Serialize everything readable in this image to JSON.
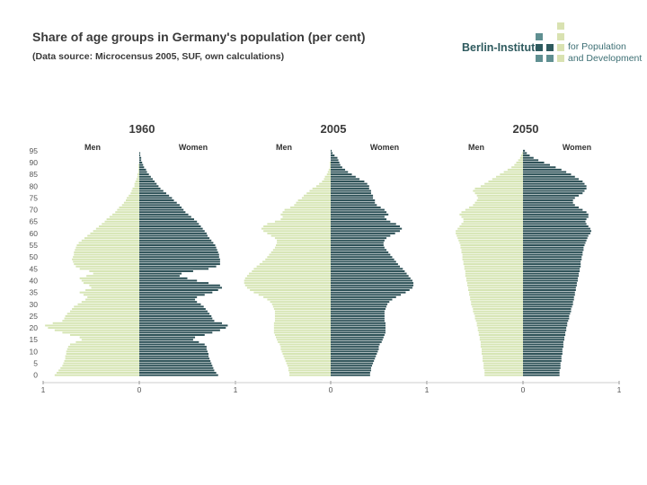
{
  "header": {
    "title": "Share of age groups in Germany's population (per cent)",
    "subtitle": "(Data source: Microcensus 2005, SUF, own calculations)"
  },
  "logo": {
    "name": "Berlin-Institute",
    "line1": "for Population",
    "line2": "and Development",
    "colors": {
      "dark": "#2e5a5e",
      "mid": "#5f8f91",
      "light": "#d9e2b1"
    }
  },
  "colors": {
    "men": "#d6e5b4",
    "women": "#2d5157"
  },
  "chart_data": [
    {
      "type": "population-pyramid",
      "title": "1960",
      "left_label": "Men",
      "right_label": "Women",
      "x_range": [
        -1,
        1
      ],
      "x_ticks": [
        "1",
        "0",
        "1"
      ],
      "age_ticks": [
        "0",
        "5",
        "10",
        "15",
        "20",
        "25",
        "30",
        "35",
        "40",
        "45",
        "50",
        "55",
        "60",
        "65",
        "70",
        "75",
        "80",
        "85",
        "90",
        "95"
      ],
      "ages": [
        0,
        1,
        2,
        3,
        4,
        5,
        6,
        7,
        8,
        9,
        10,
        11,
        12,
        13,
        14,
        15,
        16,
        17,
        18,
        19,
        20,
        21,
        22,
        23,
        24,
        25,
        26,
        27,
        28,
        29,
        30,
        31,
        32,
        33,
        34,
        35,
        36,
        37,
        38,
        39,
        40,
        41,
        42,
        43,
        44,
        45,
        46,
        47,
        48,
        49,
        50,
        51,
        52,
        53,
        54,
        55,
        56,
        57,
        58,
        59,
        60,
        61,
        62,
        63,
        64,
        65,
        66,
        67,
        68,
        69,
        70,
        71,
        72,
        73,
        74,
        75,
        76,
        77,
        78,
        79,
        80,
        81,
        82,
        83,
        84,
        85,
        86,
        87,
        88,
        89,
        90,
        91,
        92,
        93,
        94,
        95
      ],
      "series": [
        {
          "name": "Men",
          "values": [
            0.88,
            0.86,
            0.84,
            0.82,
            0.8,
            0.79,
            0.78,
            0.77,
            0.77,
            0.76,
            0.76,
            0.75,
            0.74,
            0.72,
            0.66,
            0.6,
            0.62,
            0.72,
            0.8,
            0.88,
            0.95,
            0.98,
            0.9,
            0.8,
            0.78,
            0.77,
            0.75,
            0.72,
            0.7,
            0.68,
            0.64,
            0.6,
            0.56,
            0.54,
            0.58,
            0.62,
            0.56,
            0.5,
            0.52,
            0.58,
            0.6,
            0.62,
            0.55,
            0.48,
            0.52,
            0.62,
            0.66,
            0.68,
            0.69,
            0.7,
            0.69,
            0.68,
            0.68,
            0.67,
            0.66,
            0.65,
            0.63,
            0.6,
            0.57,
            0.54,
            0.51,
            0.48,
            0.45,
            0.42,
            0.39,
            0.36,
            0.34,
            0.31,
            0.28,
            0.25,
            0.23,
            0.21,
            0.18,
            0.16,
            0.14,
            0.13,
            0.11,
            0.09,
            0.08,
            0.07,
            0.05,
            0.05,
            0.04,
            0.03,
            0.02,
            0.02,
            0.01,
            0.01,
            0.01,
            0.01,
            0.0,
            0.0,
            0.0,
            0.0,
            0.0,
            0.0
          ]
        },
        {
          "name": "Women",
          "values": [
            0.82,
            0.8,
            0.78,
            0.77,
            0.76,
            0.75,
            0.74,
            0.73,
            0.72,
            0.72,
            0.71,
            0.7,
            0.7,
            0.68,
            0.62,
            0.56,
            0.58,
            0.68,
            0.76,
            0.84,
            0.9,
            0.92,
            0.86,
            0.78,
            0.76,
            0.75,
            0.73,
            0.71,
            0.69,
            0.67,
            0.64,
            0.6,
            0.58,
            0.6,
            0.68,
            0.76,
            0.82,
            0.86,
            0.84,
            0.72,
            0.6,
            0.5,
            0.42,
            0.44,
            0.56,
            0.72,
            0.8,
            0.84,
            0.84,
            0.84,
            0.83,
            0.83,
            0.82,
            0.81,
            0.8,
            0.79,
            0.77,
            0.75,
            0.73,
            0.71,
            0.7,
            0.68,
            0.66,
            0.64,
            0.62,
            0.6,
            0.57,
            0.54,
            0.51,
            0.48,
            0.46,
            0.44,
            0.42,
            0.39,
            0.36,
            0.34,
            0.31,
            0.28,
            0.25,
            0.22,
            0.2,
            0.18,
            0.16,
            0.14,
            0.12,
            0.1,
            0.08,
            0.07,
            0.05,
            0.04,
            0.03,
            0.02,
            0.02,
            0.01,
            0.01,
            0.0
          ]
        }
      ]
    },
    {
      "type": "population-pyramid",
      "title": "2005",
      "left_label": "Men",
      "right_label": "Women",
      "x_range": [
        -1,
        1
      ],
      "x_ticks": [
        "0",
        "1"
      ],
      "age_ticks": [],
      "ages": [
        0,
        1,
        2,
        3,
        4,
        5,
        6,
        7,
        8,
        9,
        10,
        11,
        12,
        13,
        14,
        15,
        16,
        17,
        18,
        19,
        20,
        21,
        22,
        23,
        24,
        25,
        26,
        27,
        28,
        29,
        30,
        31,
        32,
        33,
        34,
        35,
        36,
        37,
        38,
        39,
        40,
        41,
        42,
        43,
        44,
        45,
        46,
        47,
        48,
        49,
        50,
        51,
        52,
        53,
        54,
        55,
        56,
        57,
        58,
        59,
        60,
        61,
        62,
        63,
        64,
        65,
        66,
        67,
        68,
        69,
        70,
        71,
        72,
        73,
        74,
        75,
        76,
        77,
        78,
        79,
        80,
        81,
        82,
        83,
        84,
        85,
        86,
        87,
        88,
        89,
        90,
        91,
        92,
        93,
        94,
        95
      ],
      "series": [
        {
          "name": "Men",
          "values": [
            0.43,
            0.43,
            0.44,
            0.44,
            0.45,
            0.46,
            0.47,
            0.48,
            0.49,
            0.5,
            0.51,
            0.52,
            0.52,
            0.53,
            0.55,
            0.56,
            0.57,
            0.58,
            0.59,
            0.59,
            0.59,
            0.59,
            0.59,
            0.58,
            0.58,
            0.58,
            0.58,
            0.58,
            0.59,
            0.6,
            0.61,
            0.63,
            0.66,
            0.7,
            0.75,
            0.8,
            0.84,
            0.87,
            0.89,
            0.9,
            0.9,
            0.89,
            0.87,
            0.85,
            0.82,
            0.8,
            0.77,
            0.74,
            0.71,
            0.68,
            0.66,
            0.64,
            0.62,
            0.6,
            0.58,
            0.57,
            0.56,
            0.56,
            0.58,
            0.62,
            0.66,
            0.7,
            0.72,
            0.7,
            0.66,
            0.58,
            0.52,
            0.5,
            0.52,
            0.5,
            0.48,
            0.42,
            0.38,
            0.36,
            0.34,
            0.3,
            0.28,
            0.25,
            0.22,
            0.19,
            0.15,
            0.12,
            0.09,
            0.07,
            0.06,
            0.04,
            0.03,
            0.02,
            0.01,
            0.01,
            0.01,
            0.0,
            0.0,
            0.0,
            0.0,
            0.0
          ]
        },
        {
          "name": "Women",
          "values": [
            0.41,
            0.41,
            0.42,
            0.42,
            0.43,
            0.44,
            0.45,
            0.46,
            0.47,
            0.48,
            0.49,
            0.5,
            0.5,
            0.51,
            0.53,
            0.54,
            0.55,
            0.56,
            0.57,
            0.57,
            0.57,
            0.57,
            0.57,
            0.56,
            0.56,
            0.56,
            0.56,
            0.56,
            0.57,
            0.58,
            0.59,
            0.61,
            0.64,
            0.68,
            0.73,
            0.78,
            0.82,
            0.85,
            0.86,
            0.86,
            0.85,
            0.83,
            0.81,
            0.79,
            0.77,
            0.75,
            0.72,
            0.7,
            0.68,
            0.66,
            0.64,
            0.62,
            0.6,
            0.58,
            0.56,
            0.55,
            0.55,
            0.56,
            0.58,
            0.62,
            0.67,
            0.72,
            0.74,
            0.72,
            0.68,
            0.62,
            0.58,
            0.56,
            0.6,
            0.58,
            0.56,
            0.52,
            0.48,
            0.46,
            0.46,
            0.44,
            0.44,
            0.42,
            0.42,
            0.4,
            0.4,
            0.38,
            0.35,
            0.3,
            0.26,
            0.22,
            0.18,
            0.15,
            0.12,
            0.1,
            0.09,
            0.08,
            0.07,
            0.04,
            0.02,
            0.01
          ]
        }
      ]
    },
    {
      "type": "population-pyramid",
      "title": "2050",
      "left_label": "Men",
      "right_label": "Women",
      "x_range": [
        -1,
        1
      ],
      "x_ticks": [
        "0",
        "1"
      ],
      "age_ticks": [],
      "ages": [
        0,
        1,
        2,
        3,
        4,
        5,
        6,
        7,
        8,
        9,
        10,
        11,
        12,
        13,
        14,
        15,
        16,
        17,
        18,
        19,
        20,
        21,
        22,
        23,
        24,
        25,
        26,
        27,
        28,
        29,
        30,
        31,
        32,
        33,
        34,
        35,
        36,
        37,
        38,
        39,
        40,
        41,
        42,
        43,
        44,
        45,
        46,
        47,
        48,
        49,
        50,
        51,
        52,
        53,
        54,
        55,
        56,
        57,
        58,
        59,
        60,
        61,
        62,
        63,
        64,
        65,
        66,
        67,
        68,
        69,
        70,
        71,
        72,
        73,
        74,
        75,
        76,
        77,
        78,
        79,
        80,
        81,
        82,
        83,
        84,
        85,
        86,
        87,
        88,
        89,
        90,
        91,
        92,
        93,
        94,
        95
      ],
      "series": [
        {
          "name": "Men",
          "values": [
            0.4,
            0.4,
            0.4,
            0.41,
            0.41,
            0.41,
            0.42,
            0.42,
            0.42,
            0.43,
            0.43,
            0.43,
            0.44,
            0.44,
            0.44,
            0.45,
            0.45,
            0.46,
            0.46,
            0.47,
            0.47,
            0.48,
            0.48,
            0.49,
            0.5,
            0.5,
            0.51,
            0.52,
            0.52,
            0.53,
            0.54,
            0.54,
            0.55,
            0.55,
            0.56,
            0.56,
            0.57,
            0.57,
            0.58,
            0.58,
            0.59,
            0.59,
            0.6,
            0.6,
            0.6,
            0.61,
            0.61,
            0.62,
            0.62,
            0.63,
            0.63,
            0.63,
            0.64,
            0.64,
            0.65,
            0.65,
            0.66,
            0.67,
            0.68,
            0.69,
            0.7,
            0.7,
            0.68,
            0.66,
            0.64,
            0.62,
            0.62,
            0.64,
            0.66,
            0.64,
            0.6,
            0.56,
            0.52,
            0.5,
            0.48,
            0.47,
            0.48,
            0.5,
            0.52,
            0.5,
            0.44,
            0.4,
            0.36,
            0.32,
            0.28,
            0.24,
            0.2,
            0.16,
            0.12,
            0.09,
            0.07,
            0.05,
            0.03,
            0.02,
            0.01,
            0.0
          ]
        },
        {
          "name": "Women",
          "values": [
            0.38,
            0.38,
            0.38,
            0.39,
            0.39,
            0.39,
            0.4,
            0.4,
            0.4,
            0.41,
            0.41,
            0.41,
            0.42,
            0.42,
            0.42,
            0.43,
            0.43,
            0.44,
            0.44,
            0.45,
            0.45,
            0.46,
            0.46,
            0.47,
            0.48,
            0.48,
            0.49,
            0.5,
            0.5,
            0.51,
            0.52,
            0.52,
            0.53,
            0.53,
            0.54,
            0.54,
            0.55,
            0.55,
            0.56,
            0.56,
            0.57,
            0.57,
            0.58,
            0.58,
            0.59,
            0.59,
            0.6,
            0.6,
            0.6,
            0.61,
            0.61,
            0.62,
            0.62,
            0.63,
            0.63,
            0.64,
            0.65,
            0.66,
            0.67,
            0.68,
            0.7,
            0.71,
            0.7,
            0.68,
            0.66,
            0.65,
            0.66,
            0.68,
            0.68,
            0.66,
            0.62,
            0.58,
            0.54,
            0.52,
            0.52,
            0.54,
            0.58,
            0.62,
            0.64,
            0.66,
            0.66,
            0.64,
            0.62,
            0.58,
            0.54,
            0.5,
            0.45,
            0.4,
            0.34,
            0.28,
            0.22,
            0.16,
            0.11,
            0.07,
            0.04,
            0.02
          ]
        }
      ]
    }
  ]
}
